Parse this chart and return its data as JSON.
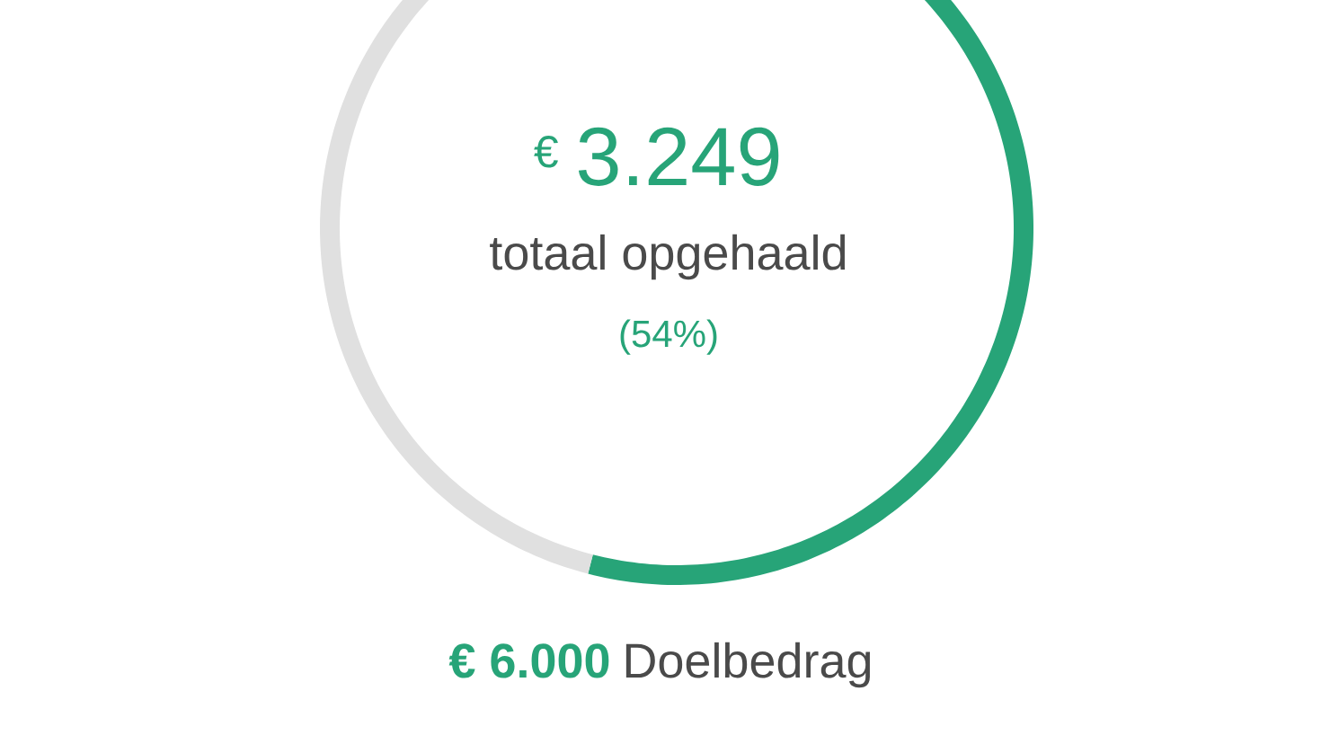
{
  "chart_data": {
    "type": "donut",
    "categories": [
      null,
      null
    ],
    "values": [
      54,
      46
    ],
    "colors": [
      "#27a478",
      "#e0e0e0"
    ],
    "annotations": [
      "€",
      "3.249",
      "totaal opgehaald",
      "(54%)",
      "€ 6.000",
      "Doelbedrag"
    ]
  }
}
